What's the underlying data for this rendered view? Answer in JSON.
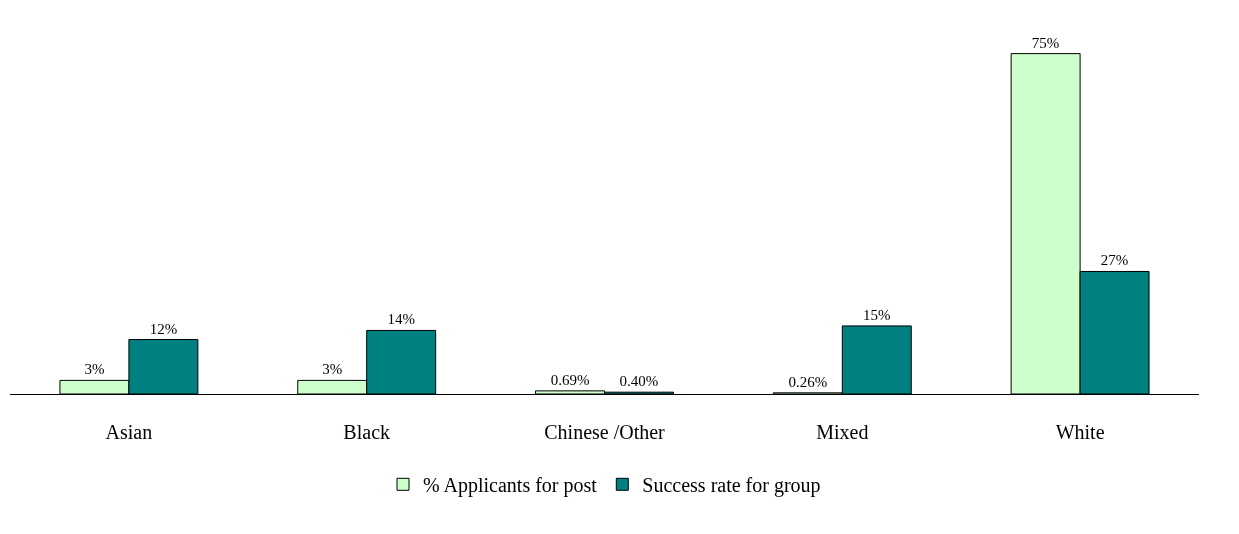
{
  "chart_data": {
    "type": "bar",
    "categories": [
      "Asian",
      "Black",
      "Chinese /Other",
      "Mixed",
      "White"
    ],
    "series": [
      {
        "name": "% Applicants for post",
        "color": "#ccffcc",
        "values": [
          3,
          3,
          0.69,
          0.26,
          75
        ],
        "value_labels": [
          "3%",
          "3%",
          "0.69%",
          "0.26%",
          "75%"
        ]
      },
      {
        "name": "Success rate for group",
        "color": "#008080",
        "values": [
          12,
          14,
          0.4,
          15,
          27
        ],
        "value_labels": [
          "12%",
          "14%",
          "0.40%",
          "15%",
          "27%"
        ]
      }
    ],
    "legend": "bottom",
    "grid": false
  }
}
